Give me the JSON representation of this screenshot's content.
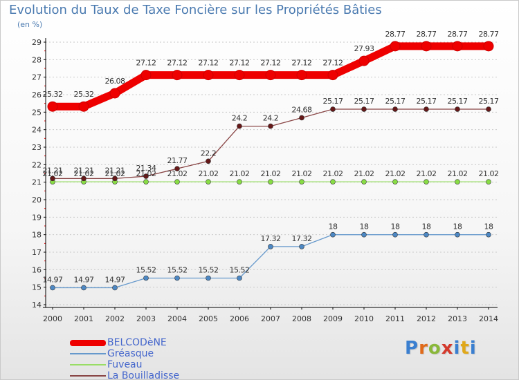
{
  "chart_data": {
    "type": "line",
    "title": "Evolution du Taux de Taxe Foncière sur les Propriétés Bâties",
    "ylabel": "(en %)",
    "xlabel": "",
    "ylim": [
      14,
      29
    ],
    "yticks": [
      14,
      15,
      16,
      17,
      18,
      19,
      20,
      21,
      22,
      23,
      24,
      25,
      26,
      27,
      28,
      29
    ],
    "categories": [
      "2000",
      "2001",
      "2002",
      "2003",
      "2004",
      "2005",
      "2006",
      "2007",
      "2008",
      "2009",
      "2010",
      "2011",
      "2012",
      "2013",
      "2014"
    ],
    "series": [
      {
        "name": "BELCODèNE",
        "color": "#ee0000",
        "marker": "#ee0000",
        "thick": true,
        "values": [
          25.32,
          25.32,
          26.08,
          27.12,
          27.12,
          27.12,
          27.12,
          27.12,
          27.12,
          27.12,
          27.93,
          28.77,
          28.77,
          28.77,
          28.77
        ],
        "labels": [
          "25.32",
          "25.32",
          "26.08",
          "27.12",
          "27.12",
          "27.12",
          "27.12",
          "27.12",
          "27.12",
          "27.12",
          "27.93",
          "28.77",
          "28.77",
          "28.77",
          "28.77"
        ]
      },
      {
        "name": "Gréasque",
        "color": "#6699cc",
        "marker": "#4d88c4",
        "thick": false,
        "values": [
          14.97,
          14.97,
          14.97,
          15.52,
          15.52,
          15.52,
          15.52,
          17.32,
          17.32,
          18,
          18,
          18,
          18,
          18,
          18
        ],
        "labels": [
          "14.97",
          "14.97",
          "14.97",
          "15.52",
          "15.52",
          "15.52",
          "15.52",
          "17.32",
          "17.32",
          "18",
          "18",
          "18",
          "18",
          "18",
          "18"
        ]
      },
      {
        "name": "Fuveau",
        "color": "#99dd66",
        "marker": "#88dd44",
        "thick": false,
        "values": [
          21.02,
          21.02,
          21.02,
          21.02,
          21.02,
          21.02,
          21.02,
          21.02,
          21.02,
          21.02,
          21.02,
          21.02,
          21.02,
          21.02,
          21.02
        ],
        "labels": [
          "21.02",
          "21.02",
          "21.02",
          "21.02",
          "21.02",
          "21.02",
          "21.02",
          "21.02",
          "21.02",
          "21.02",
          "21.02",
          "21.02",
          "21.02",
          "21.02",
          "21.02"
        ]
      },
      {
        "name": "La Bouilladisse",
        "color": "#884444",
        "marker": "#661818",
        "thick": false,
        "values": [
          21.21,
          21.21,
          21.21,
          21.34,
          21.77,
          22.2,
          24.2,
          24.2,
          24.68,
          25.17,
          25.17,
          25.17,
          25.17,
          25.17,
          25.17
        ],
        "labels": [
          "21.21",
          "21.21",
          "21.21",
          "21.34",
          "21.77",
          "22.2",
          "24.2",
          "24.2",
          "24.68",
          "25.17",
          "25.17",
          "25.17",
          "25.17",
          "25.17",
          "25.17"
        ]
      }
    ],
    "legend_position": "bottom-left",
    "grid": "horizontal-dashed"
  },
  "legend": {
    "items": [
      {
        "label": "BELCODèNE"
      },
      {
        "label": "Gréasque"
      },
      {
        "label": "Fuveau"
      },
      {
        "label": "La Bouilladisse"
      }
    ]
  },
  "brand": {
    "letters": [
      "P",
      "r",
      "o",
      "x",
      "i",
      "t",
      "i"
    ],
    "colors": [
      "#3a7fd0",
      "#e06a1a",
      "#8ab83a",
      "#d4392c",
      "#3a7fd0",
      "#e0a81a",
      "#3a7fd0"
    ]
  }
}
